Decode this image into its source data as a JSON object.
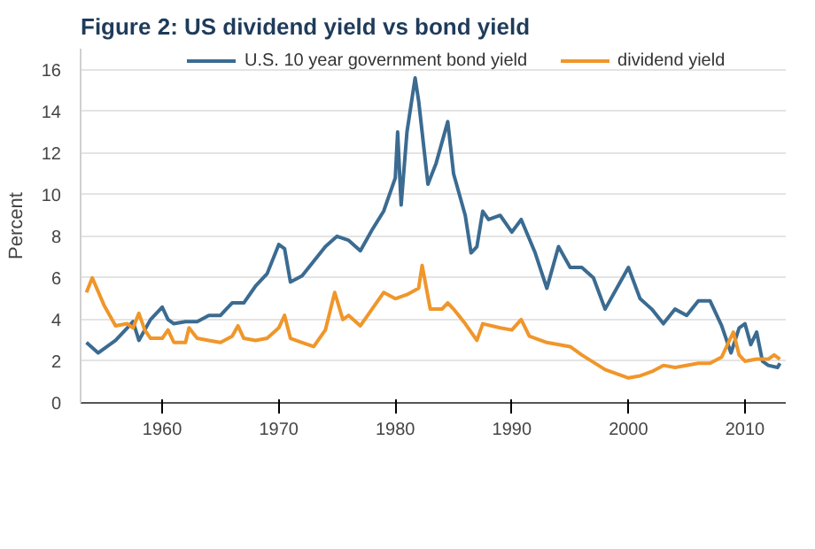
{
  "chart_data": {
    "type": "line",
    "title": "Figure 2: US dividend yield vs bond yield",
    "ylabel": "Percent",
    "xlim": [
      1953,
      2013.5
    ],
    "xticks": [
      1960,
      1970,
      1980,
      1990,
      2000,
      2010
    ],
    "ylim": [
      0,
      17
    ],
    "yticks": [
      0,
      2,
      4,
      6,
      8,
      10,
      12,
      14,
      16
    ],
    "grid": "y",
    "legend": "top",
    "line_style": "solid",
    "series": [
      {
        "name": "U.S. 10 year government bond yield",
        "color": "#3b6b91",
        "x": [
          1953.5,
          1954.5,
          1955,
          1956,
          1957,
          1957.5,
          1958,
          1959,
          1960,
          1960.5,
          1961,
          1962,
          1963,
          1964,
          1965,
          1966,
          1967,
          1968,
          1969,
          1970,
          1970.5,
          1971,
          1972,
          1973,
          1974,
          1975,
          1976,
          1977,
          1978,
          1979,
          1980,
          1980.2,
          1980.5,
          1981,
          1981.7,
          1982,
          1982.8,
          1983.5,
          1984.5,
          1985,
          1986,
          1986.5,
          1987,
          1987.5,
          1988,
          1989,
          1990,
          1990.8,
          1992,
          1993,
          1994,
          1995,
          1996,
          1997,
          1998,
          1999,
          2000,
          2001,
          2002,
          2003,
          2004,
          2005,
          2006,
          2007,
          2008,
          2008.8,
          2009.5,
          2010,
          2010.5,
          2011,
          2011.5,
          2012,
          2012.8,
          2013
        ],
        "values": [
          2.9,
          2.4,
          2.6,
          3.0,
          3.6,
          3.9,
          3.0,
          4.0,
          4.6,
          4.0,
          3.8,
          3.9,
          3.9,
          4.2,
          4.2,
          4.8,
          4.8,
          5.6,
          6.2,
          7.6,
          7.4,
          5.8,
          6.1,
          6.8,
          7.5,
          8.0,
          7.8,
          7.3,
          8.3,
          9.2,
          10.8,
          13.0,
          9.5,
          13.0,
          15.6,
          14.5,
          10.5,
          11.5,
          13.5,
          11.0,
          9.0,
          7.2,
          7.5,
          9.2,
          8.8,
          9.0,
          8.2,
          8.8,
          7.2,
          5.5,
          7.5,
          6.5,
          6.5,
          6.0,
          4.5,
          5.5,
          6.5,
          5.0,
          4.5,
          3.8,
          4.5,
          4.2,
          4.9,
          4.9,
          3.7,
          2.4,
          3.6,
          3.8,
          2.8,
          3.4,
          2.0,
          1.8,
          1.7,
          1.9
        ]
      },
      {
        "name": "dividend yield",
        "color": "#f0962a",
        "x": [
          1953.5,
          1954,
          1955,
          1956,
          1957,
          1957.5,
          1958,
          1958.5,
          1959,
          1960,
          1960.5,
          1961,
          1962,
          1962.3,
          1963,
          1964,
          1965,
          1966,
          1966.5,
          1967,
          1968,
          1969,
          1970,
          1970.5,
          1971,
          1972,
          1973,
          1974,
          1974.8,
          1975.5,
          1976,
          1977,
          1978,
          1979,
          1980,
          1981,
          1982,
          1982.3,
          1983,
          1984,
          1984.5,
          1985,
          1986,
          1987,
          1987.5,
          1989,
          1990,
          1990.8,
          1991.5,
          1993,
          1995,
          1996,
          1998,
          2000,
          2001,
          2002,
          2003,
          2004,
          2006,
          2007,
          2008,
          2009,
          2009.5,
          2010,
          2011,
          2012,
          2012.5,
          2013
        ],
        "values": [
          5.3,
          6.0,
          4.7,
          3.7,
          3.8,
          3.6,
          4.3,
          3.5,
          3.1,
          3.1,
          3.5,
          2.9,
          2.9,
          3.6,
          3.1,
          3.0,
          2.9,
          3.2,
          3.7,
          3.1,
          3.0,
          3.1,
          3.6,
          4.2,
          3.1,
          2.9,
          2.7,
          3.5,
          5.3,
          4.0,
          4.2,
          3.7,
          4.5,
          5.3,
          5.0,
          5.2,
          5.5,
          6.6,
          4.5,
          4.5,
          4.8,
          4.5,
          3.8,
          3.0,
          3.8,
          3.6,
          3.5,
          4.0,
          3.2,
          2.9,
          2.7,
          2.3,
          1.6,
          1.2,
          1.3,
          1.5,
          1.8,
          1.7,
          1.9,
          1.9,
          2.2,
          3.4,
          2.3,
          2.0,
          2.1,
          2.1,
          2.3,
          2.1
        ]
      }
    ]
  }
}
